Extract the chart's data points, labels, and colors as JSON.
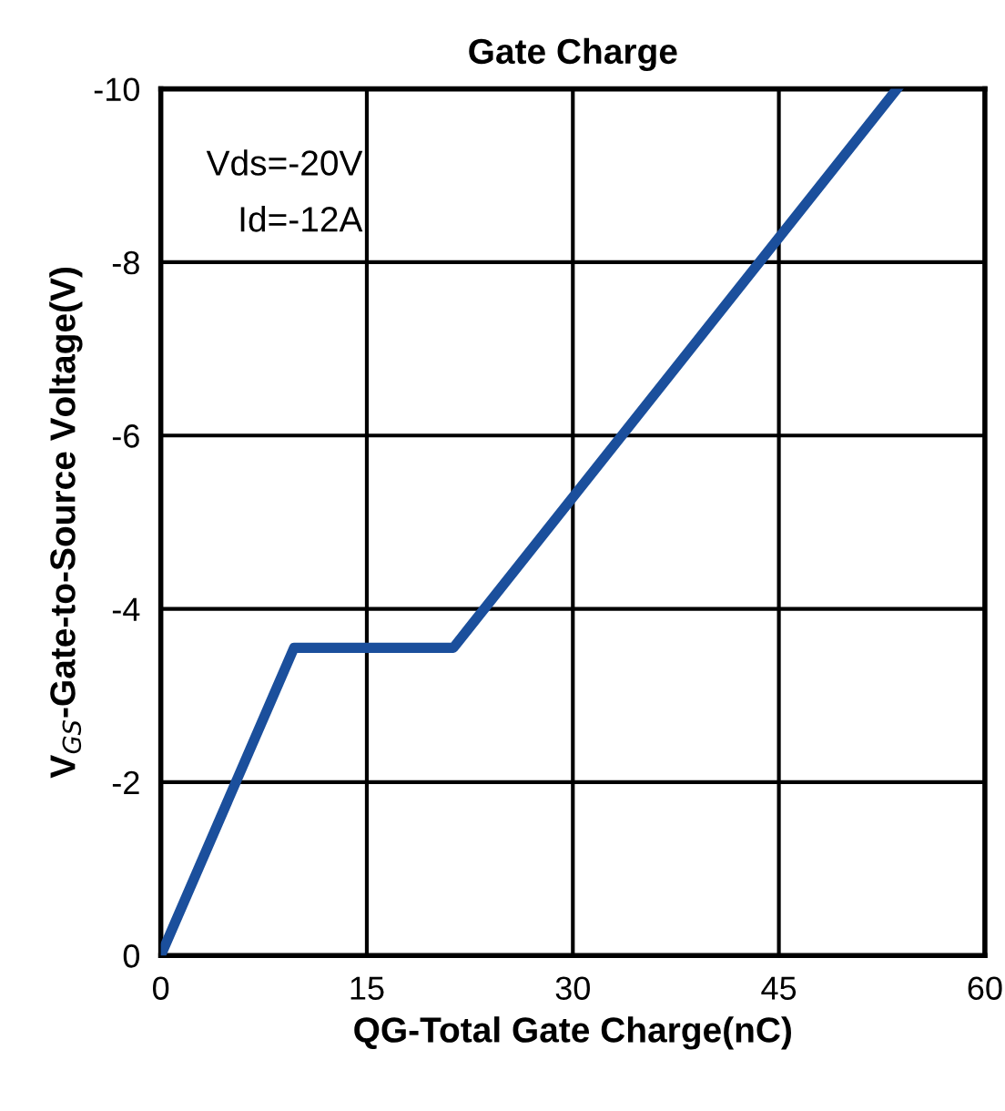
{
  "chart_data": {
    "type": "line",
    "title": "Gate Charge",
    "xlabel": "QG-Total Gate Charge(nC)",
    "ylabel": "V$_{GS}$-Gate-to-Source Voltage(V)",
    "series": [
      {
        "color": "#1b4f9c",
        "x": [
          0,
          9.7,
          21.3,
          53.6
        ],
        "values": [
          0,
          -3.55,
          -3.55,
          -10
        ]
      }
    ],
    "xlim": [
      0,
      60
    ],
    "xticks": [
      0,
      15,
      30,
      45,
      60
    ],
    "ylim": [
      0,
      -10
    ],
    "yticks": [
      0,
      -2,
      -4,
      -6,
      -8,
      -10
    ],
    "grid": true,
    "marker": "none",
    "line_style": "solid",
    "annotations": [
      "Vds=-20V",
      "Id=-12A"
    ]
  }
}
